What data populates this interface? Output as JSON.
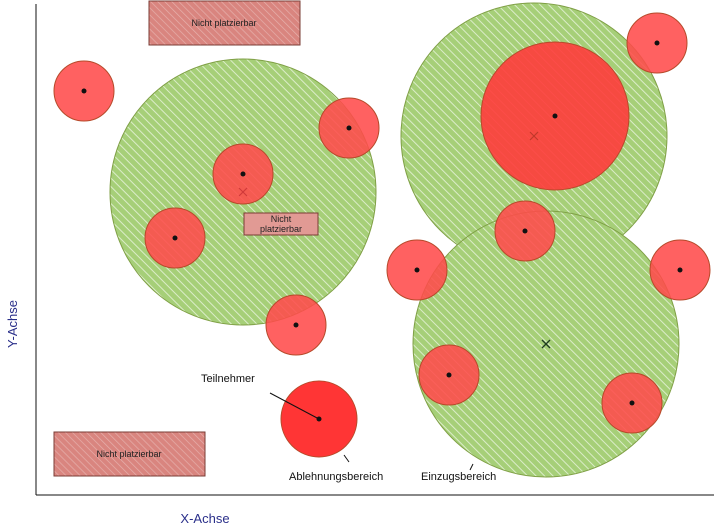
{
  "axes": {
    "x_label": "X-Achse",
    "y_label": "Y-Achse"
  },
  "colors": {
    "catchment_fill": "#a6cf78",
    "catchment_stroke": "#7f9f45",
    "rejection_fill": "#ff4b4b",
    "rejection_stroke": "#b64a2a",
    "zone_fill": "#d9857f",
    "zone_stroke": "#7a3c36",
    "axis_color": "#111111",
    "label_color": "#2a2f8a"
  },
  "zones": [
    {
      "id": "zone-top",
      "text": "Nicht platzierbar"
    },
    {
      "id": "zone-middle",
      "line1": "Nicht",
      "line2": "platzierbar"
    },
    {
      "id": "zone-bottom",
      "text": "Nicht platzierbar"
    }
  ],
  "annotations": {
    "participant": "Teilnehmer",
    "rejection_area": "Ablehnungsbereich",
    "catchment_area": "Einzugsbereich"
  }
}
